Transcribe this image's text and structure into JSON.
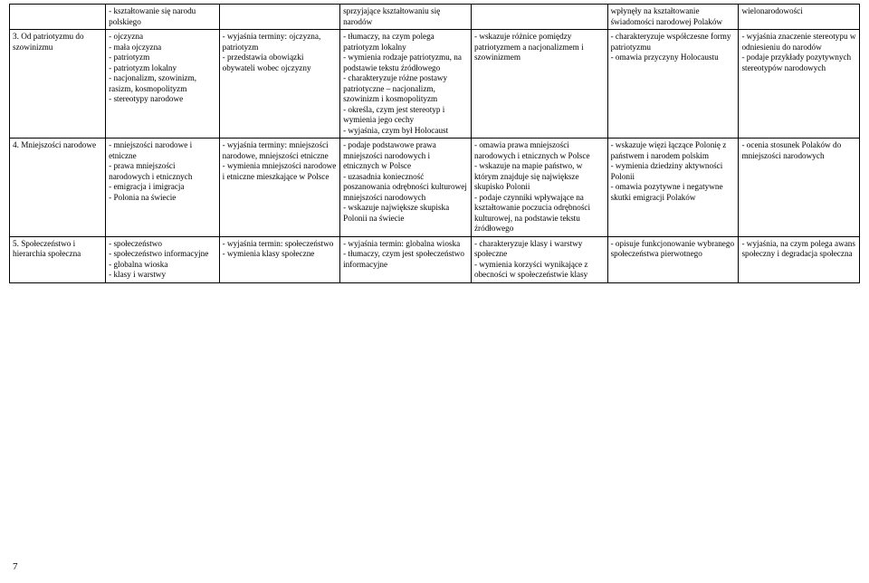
{
  "table": {
    "rows": [
      {
        "c1": "",
        "c2": "- kształtowanie się narodu polskiego",
        "c3": "",
        "c4": "sprzyjające kształtowaniu się narodów",
        "c5": "",
        "c6": "wpłynęły na kształtowanie świadomości narodowej Polaków",
        "c7": "wielonarodowości"
      },
      {
        "c1": "3. Od patriotyzmu do szowinizmu",
        "c2": "- ojczyzna\n- mała ojczyzna\n- patriotyzm\n- patriotyzm lokalny\n- nacjonalizm, szowinizm, rasizm, kosmopolityzm\n- stereotypy narodowe",
        "c3": "- wyjaśnia terminy: ojczyzna, patriotyzm\n- przedstawia obowiązki obywateli wobec ojczyzny",
        "c4": "- tłumaczy, na czym polega patriotyzm lokalny\n- wymienia rodzaje patriotyzmu, na podstawie tekstu źródłowego\n- charakteryzuje różne postawy patriotyczne – nacjonalizm, szowinizm i kosmopolityzm\n- określa, czym jest stereotyp i wymienia jego cechy\n- wyjaśnia, czym był Holocaust",
        "c5": "- wskazuje różnice pomiędzy patriotyzmem a nacjonalizmem i szowinizmem",
        "c6": "- charakteryzuje współczesne formy patriotyzmu\n- omawia przyczyny Holocaustu",
        "c7": "- wyjaśnia znaczenie stereotypu w odniesieniu do narodów\n- podaje przykłady pozytywnych stereotypów narodowych"
      },
      {
        "c1": "4. Mniejszości narodowe",
        "c2": "- mniejszości narodowe i etniczne\n- prawa mniejszości narodowych i etnicznych\n- emigracja i imigracja\n- Polonia na świecie",
        "c3": "- wyjaśnia terminy: mniejszości narodowe, mniejszości etniczne\n- wymienia mniejszości narodowe i etniczne mieszkające w Polsce",
        "c4": "- podaje podstawowe prawa mniejszości narodowych i etnicznych w Polsce\n- uzasadnia konieczność poszanowania odrębności kulturowej mniejszości narodowych\n- wskazuje największe skupiska Polonii na świecie",
        "c5": "- omawia prawa mniejszości narodowych i etnicznych w Polsce\n- wskazuje na mapie państwo, w którym znajduje się największe skupisko Polonii\n- podaje czynniki wpływające na kształtowanie poczucia odrębności kulturowej, na podstawie tekstu źródłowego",
        "c6": "- wskazuje więzi łączące Polonię z państwem i narodem polskim\n- wymienia dziedziny aktywności Polonii\n- omawia pozytywne i negatywne skutki emigracji Polaków",
        "c7": "- ocenia stosunek Polaków do mniejszości narodowych"
      },
      {
        "c1": "5. Społeczeństwo i hierarchia społeczna",
        "c2": "- społeczeństwo\n- społeczeństwo informacyjne\n- globalna wioska\n- klasy i warstwy",
        "c3": "- wyjaśnia termin: społeczeństwo\n- wymienia klasy społeczne",
        "c4": "- wyjaśnia termin: globalna wioska\n- tłumaczy, czym jest społeczeństwo informacyjne",
        "c5": "- charakteryzuje klasy i warstwy społeczne\n- wymienia korzyści wynikające z obecności w społeczeństwie klasy",
        "c6": "- opisuje funkcjonowanie wybranego społeczeństwa pierwotnego",
        "c7": "- wyjaśnia, na czym polega awans społeczny i degradacja społeczna"
      }
    ]
  },
  "pageNumber": "7"
}
